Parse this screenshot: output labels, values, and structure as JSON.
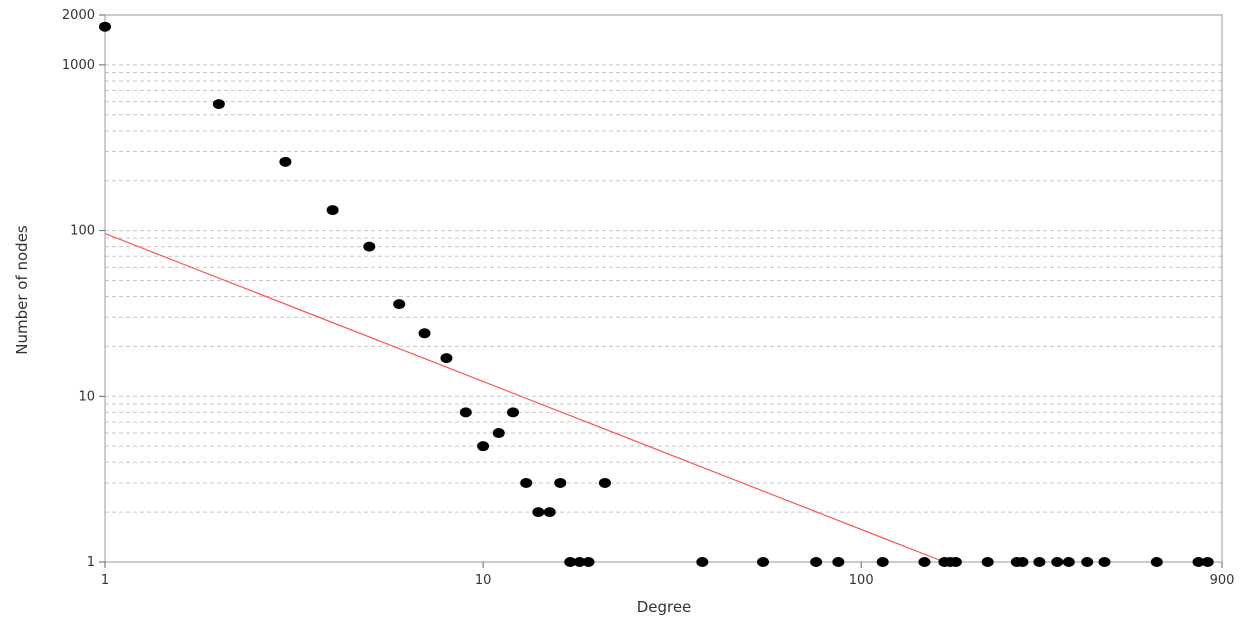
{
  "chart_data": {
    "type": "scatter",
    "title": "",
    "xlabel": "Degree",
    "ylabel": "Number of nodes",
    "xscale": "log",
    "yscale": "log",
    "xlim": [
      1,
      900
    ],
    "ylim": [
      1,
      2000
    ],
    "x_ticks": [
      "1",
      "10",
      "100",
      "900"
    ],
    "y_ticks": [
      "1",
      "10",
      "100",
      "1000",
      "2000"
    ],
    "grid": "horizontal dashed (major and minor)",
    "colors": {
      "points": "#000000",
      "fit_line": "#ff5555",
      "grid": "#c8c8c8",
      "axis": "#666666"
    },
    "series": [
      {
        "points": [
          [
            1,
            1700
          ],
          [
            2,
            580
          ],
          [
            3,
            260
          ],
          [
            4,
            133
          ],
          [
            5,
            80
          ],
          [
            6,
            36
          ],
          [
            7,
            24
          ],
          [
            8,
            17
          ],
          [
            9,
            8
          ],
          [
            10,
            5
          ],
          [
            11,
            6
          ],
          [
            12,
            8
          ],
          [
            13,
            3
          ],
          [
            14,
            2
          ],
          [
            15,
            2
          ],
          [
            16,
            3
          ],
          [
            17,
            1
          ],
          [
            18,
            1
          ],
          [
            19,
            1
          ],
          [
            21,
            3
          ],
          [
            38,
            1
          ],
          [
            55,
            1
          ],
          [
            76,
            1
          ],
          [
            87,
            1
          ],
          [
            114,
            1
          ],
          [
            147,
            1
          ],
          [
            166,
            1
          ],
          [
            172,
            1
          ],
          [
            178,
            1
          ],
          [
            216,
            1
          ],
          [
            258,
            1
          ],
          [
            267,
            1
          ],
          [
            296,
            1
          ],
          [
            330,
            1
          ],
          [
            354,
            1
          ],
          [
            396,
            1
          ],
          [
            440,
            1
          ],
          [
            605,
            1
          ],
          [
            780,
            1
          ],
          [
            825,
            1
          ]
        ]
      }
    ],
    "fit_line": {
      "x": [
        1,
        166
      ],
      "y": [
        96,
        1
      ]
    }
  }
}
